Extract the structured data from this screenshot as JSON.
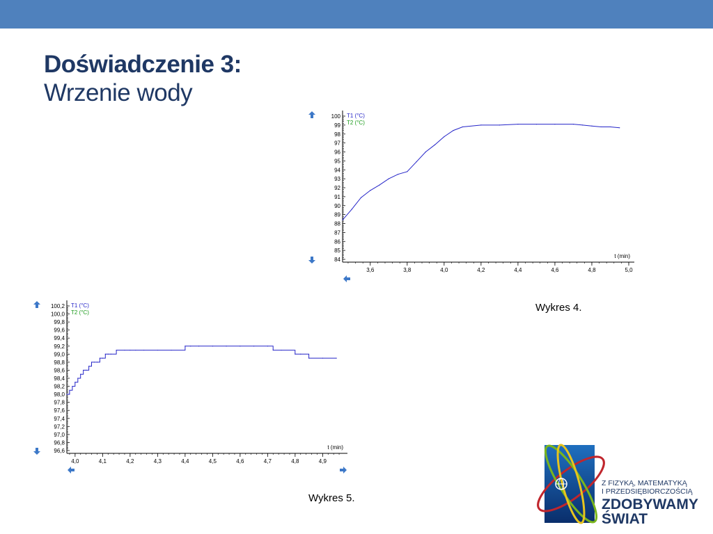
{
  "slide": {
    "title": "Doświadczenie 3:",
    "subtitle": "Wrzenie wody",
    "caption1": "Wykres 4.",
    "caption2": "Wykres 5."
  },
  "colors": {
    "topbar": "#4f81bd",
    "title": "#1f3864",
    "series_t1": "#2424c8",
    "series_t2": "#1a9a1a",
    "arrow": "#3c78c8"
  },
  "logo": {
    "line1": "Z FIZYKĄ, MATEMATYKĄ",
    "line2": "I PRZEDSIĘBIORCZOŚCIĄ",
    "line3": "ZDOBYWAMY",
    "line4": "ŚWIAT"
  },
  "chart_data": [
    {
      "type": "line",
      "xlabel": "t (min)",
      "xlim": [
        3.45,
        5.0
      ],
      "ylim": [
        84,
        100
      ],
      "xticks": [
        "3,6",
        "3,8",
        "4,0",
        "4,2",
        "4,4",
        "4,6",
        "4,8",
        "5,0"
      ],
      "xtick_values": [
        3.6,
        3.8,
        4.0,
        4.2,
        4.4,
        4.6,
        4.8,
        5.0
      ],
      "yticks": [
        "84",
        "85",
        "86",
        "87",
        "88",
        "89",
        "90",
        "91",
        "92",
        "93",
        "94",
        "95",
        "96",
        "97",
        "98",
        "99",
        "100"
      ],
      "ytick_values": [
        84,
        85,
        86,
        87,
        88,
        89,
        90,
        91,
        92,
        93,
        94,
        95,
        96,
        97,
        98,
        99,
        100
      ],
      "legend": [
        "T1 (°C)",
        "T2 (°C)"
      ],
      "series": [
        {
          "name": "T1 (°C)",
          "x": [
            3.45,
            3.5,
            3.55,
            3.6,
            3.65,
            3.7,
            3.75,
            3.8,
            3.85,
            3.9,
            3.95,
            4.0,
            4.05,
            4.1,
            4.2,
            4.3,
            4.4,
            4.5,
            4.6,
            4.7,
            4.75,
            4.8,
            4.85,
            4.9,
            4.95
          ],
          "y": [
            88.4,
            89.6,
            90.9,
            91.7,
            92.3,
            93.0,
            93.5,
            93.8,
            94.9,
            96.0,
            96.8,
            97.7,
            98.4,
            98.8,
            99.0,
            99.0,
            99.1,
            99.1,
            99.1,
            99.1,
            99.0,
            98.9,
            98.8,
            98.8,
            98.7
          ]
        }
      ]
    },
    {
      "type": "line",
      "xlabel": "t (min)",
      "xlim": [
        3.97,
        4.97
      ],
      "ylim": [
        96.6,
        100.2
      ],
      "xticks": [
        "4,0",
        "4,1",
        "4,2",
        "4,3",
        "4,4",
        "4,5",
        "4,6",
        "4,7",
        "4,8",
        "4,9"
      ],
      "xtick_values": [
        4.0,
        4.1,
        4.2,
        4.3,
        4.4,
        4.5,
        4.6,
        4.7,
        4.8,
        4.9
      ],
      "yticks": [
        "96,6",
        "96,8",
        "97,0",
        "97,2",
        "97,4",
        "97,6",
        "97,8",
        "98,0",
        "98,2",
        "98,4",
        "98,6",
        "98,8",
        "99,0",
        "99,2",
        "99,4",
        "99,6",
        "99,8",
        "100,0",
        "100,2"
      ],
      "ytick_values": [
        96.6,
        96.8,
        97.0,
        97.2,
        97.4,
        97.6,
        97.8,
        98.0,
        98.2,
        98.4,
        98.6,
        98.8,
        99.0,
        99.2,
        99.4,
        99.6,
        99.8,
        100.0,
        100.2
      ],
      "legend": [
        "T1 (°C)",
        "T2 (°C)"
      ],
      "series": [
        {
          "name": "T1 (°C)",
          "x": [
            3.97,
            3.98,
            3.99,
            4.0,
            4.01,
            4.02,
            4.03,
            4.04,
            4.05,
            4.06,
            4.07,
            4.08,
            4.09,
            4.1,
            4.11,
            4.12,
            4.13,
            4.15,
            4.18,
            4.2,
            4.22,
            4.25,
            4.3,
            4.35,
            4.4,
            4.42,
            4.45,
            4.5,
            4.55,
            4.6,
            4.65,
            4.7,
            4.72,
            4.75,
            4.8,
            4.82,
            4.85,
            4.9,
            4.95
          ],
          "y": [
            98.0,
            98.1,
            98.2,
            98.3,
            98.4,
            98.5,
            98.6,
            98.6,
            98.7,
            98.8,
            98.8,
            98.8,
            98.9,
            98.9,
            99.0,
            99.0,
            99.0,
            99.1,
            99.1,
            99.1,
            99.1,
            99.1,
            99.1,
            99.1,
            99.2,
            99.2,
            99.2,
            99.2,
            99.2,
            99.2,
            99.2,
            99.2,
            99.1,
            99.1,
            99.0,
            99.0,
            98.9,
            98.9,
            98.9
          ]
        }
      ]
    }
  ]
}
